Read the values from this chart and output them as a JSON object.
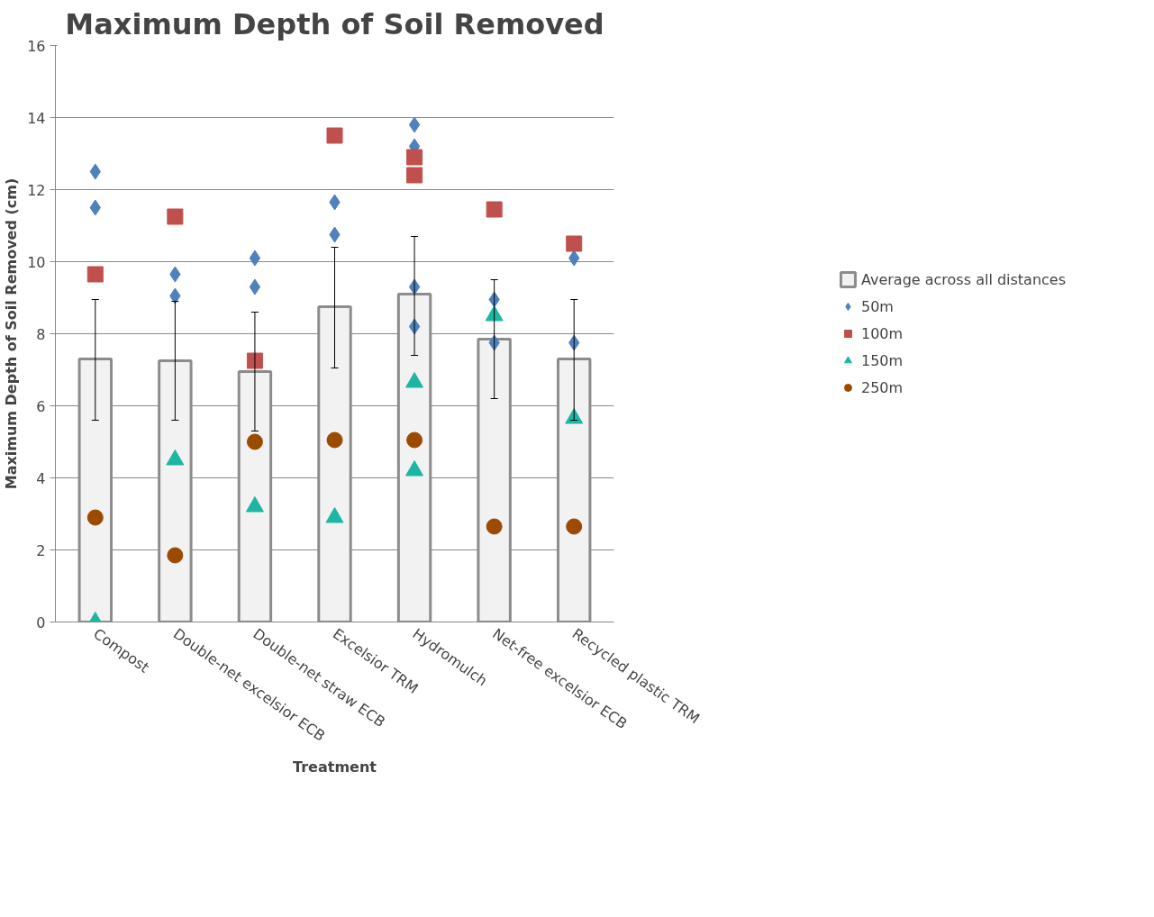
{
  "chart_data": {
    "type": "bar",
    "title": "Maximum Depth of Soil Removed",
    "xlabel": "Treatment",
    "ylabel": "Maximum Depth of Soil Removed (cm)",
    "categories": [
      "Compost",
      "Double-net excelsior ECB",
      "Double-net straw ECB",
      "Excelsior TRM",
      "Hydromulch",
      "Net-free excelsior ECB",
      "Recycled plastic TRM"
    ],
    "ylim": [
      0,
      16
    ],
    "yticks": [
      0,
      2,
      4,
      6,
      8,
      10,
      12,
      14,
      16
    ],
    "grid": "y",
    "legend": "right",
    "series": [
      {
        "name": "Average across all distances",
        "color": "#f2f2f2",
        "values": [
          7.3,
          7.25,
          6.95,
          8.75,
          9.1,
          7.85,
          7.3
        ],
        "errors": [
          [
            5.6,
            8.95
          ],
          [
            5.6,
            8.9
          ],
          [
            5.3,
            8.6
          ],
          [
            7.05,
            10.4
          ],
          [
            7.4,
            10.7
          ],
          [
            6.2,
            9.5
          ],
          [
            5.6,
            8.95
          ]
        ]
      },
      {
        "name": "50m",
        "type": "scatter",
        "marker": "diamond",
        "color": "#4f81bd",
        "x": [
          "Compost",
          "Compost",
          "Double-net excelsior ECB",
          "Double-net excelsior ECB",
          "Double-net straw ECB",
          "Double-net straw ECB",
          "Excelsior TRM",
          "Excelsior TRM",
          "Hydromulch",
          "Hydromulch",
          "Hydromulch",
          "Hydromulch",
          "Net-free excelsior ECB",
          "Net-free excelsior ECB",
          "Recycled plastic TRM",
          "Recycled plastic TRM"
        ],
        "values": [
          12.5,
          11.5,
          9.65,
          9.05,
          10.1,
          9.3,
          11.65,
          10.75,
          13.8,
          13.2,
          9.3,
          8.2,
          8.95,
          7.75,
          10.1,
          7.75
        ]
      },
      {
        "name": "100m",
        "type": "scatter",
        "marker": "square",
        "color": "#c0504d",
        "x": [
          "Compost",
          "Double-net excelsior ECB",
          "Double-net straw ECB",
          "Excelsior TRM",
          "Hydromulch",
          "Hydromulch",
          "Net-free excelsior ECB",
          "Recycled plastic TRM"
        ],
        "values": [
          9.65,
          11.25,
          7.25,
          13.5,
          12.9,
          12.4,
          11.45,
          10.5
        ]
      },
      {
        "name": "150m",
        "type": "scatter",
        "marker": "triangle",
        "color": "#1fb5a5",
        "x": [
          "Compost",
          "Double-net excelsior ECB",
          "Double-net straw ECB",
          "Excelsior TRM",
          "Hydromulch",
          "Hydromulch",
          "Net-free excelsior ECB",
          "Recycled plastic TRM"
        ],
        "values": [
          0,
          4.5,
          3.2,
          2.9,
          6.65,
          4.2,
          8.5,
          5.65
        ]
      },
      {
        "name": "250m",
        "type": "scatter",
        "marker": "circle",
        "color": "#9c4a00",
        "x": [
          "Compost",
          "Double-net excelsior ECB",
          "Double-net straw ECB",
          "Excelsior TRM",
          "Hydromulch",
          "Net-free excelsior ECB",
          "Recycled plastic TRM"
        ],
        "values": [
          2.9,
          1.85,
          5.0,
          5.05,
          5.05,
          2.65,
          2.65
        ]
      }
    ]
  }
}
